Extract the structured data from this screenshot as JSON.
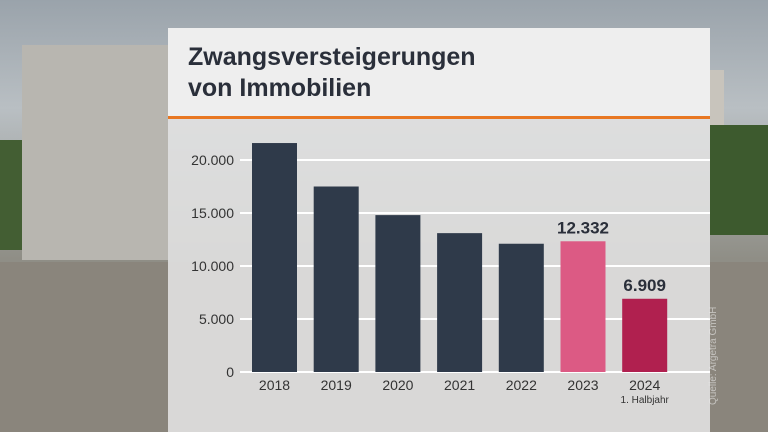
{
  "title_line1": "Zwangsversteigerungen",
  "title_line2": "von Immobilien",
  "source": "Quelle: Argetra GmbH",
  "colors": {
    "dark": "#2f3a4a",
    "pink": "#dc5a84",
    "crimson": "#b0204f",
    "accent": "#e87722"
  },
  "chart_data": {
    "type": "bar",
    "title": "Zwangsversteigerungen von Immobilien",
    "categories": [
      "2018",
      "2019",
      "2020",
      "2021",
      "2022",
      "2023",
      "2024"
    ],
    "category_sublabels": {
      "2024": "1. Halbjahr"
    },
    "values": [
      21600,
      17500,
      14800,
      13100,
      12100,
      12332,
      6909
    ],
    "data_labels": {
      "2023": "12.332",
      "2024": "6.909"
    },
    "bar_colors": [
      "#2f3a4a",
      "#2f3a4a",
      "#2f3a4a",
      "#2f3a4a",
      "#2f3a4a",
      "#dc5a84",
      "#b0204f"
    ],
    "yticks": [
      "0",
      "5.000",
      "10.000",
      "15.000",
      "20.000"
    ],
    "ytick_values": [
      0,
      5000,
      10000,
      15000,
      20000
    ],
    "ylim": [
      0,
      22000
    ],
    "grid": true
  }
}
